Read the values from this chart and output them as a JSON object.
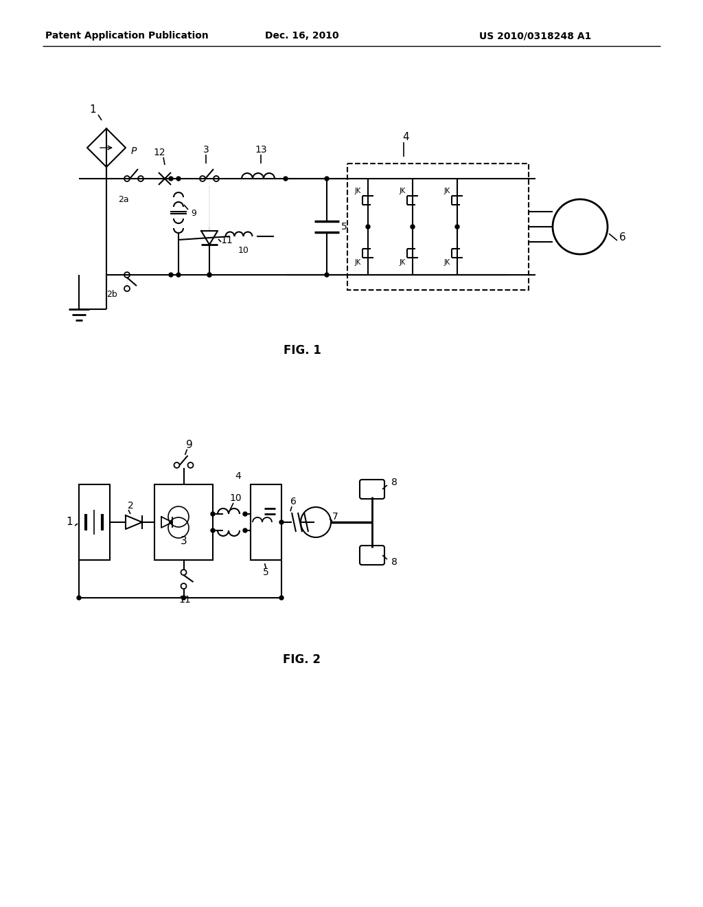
{
  "title_left": "Patent Application Publication",
  "title_center": "Dec. 16, 2010",
  "title_right": "US 2010/0318248 A1",
  "fig1_label": "FIG. 1",
  "fig2_label": "FIG. 2",
  "background_color": "#ffffff",
  "line_color": "#000000",
  "text_color": "#000000"
}
